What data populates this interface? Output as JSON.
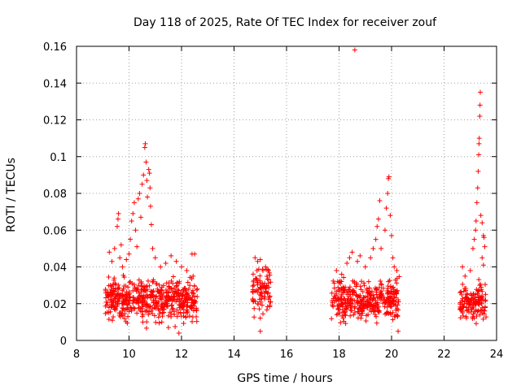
{
  "chart_data": {
    "type": "scatter",
    "title": "Day 118 of 2025, Rate Of TEC Index for receiver zouf",
    "xlabel": "GPS time / hours",
    "ylabel": "ROTI / TECUs",
    "xlim": [
      8,
      24
    ],
    "ylim": [
      0,
      0.16
    ],
    "grid": true,
    "marker": "+",
    "color": "#ff0000",
    "x_ticks": [
      8,
      10,
      12,
      14,
      16,
      18,
      20,
      22,
      24
    ],
    "x_tick_labels": [
      "8",
      "10",
      "12",
      "14",
      "16",
      "18",
      "20",
      "22",
      "24"
    ],
    "y_ticks": [
      0,
      0.02,
      0.04,
      0.06,
      0.08,
      0.1,
      0.12,
      0.14,
      0.16
    ],
    "y_tick_labels": [
      "0",
      "0.02",
      "0.04",
      "0.06",
      "0.08",
      "0.1",
      "0.12",
      "0.14",
      "0.16"
    ],
    "series": [
      {
        "name": "ROTI",
        "clusters": [
          {
            "x_range": [
              9.1,
              12.6
            ],
            "base_range": [
              0.006,
              0.034
            ],
            "n": 520
          },
          {
            "x_range": [
              14.7,
              15.4
            ],
            "base_range": [
              0.006,
              0.044
            ],
            "n": 90
          },
          {
            "x_range": [
              17.7,
              20.3
            ],
            "base_range": [
              0.006,
              0.034
            ],
            "n": 380
          },
          {
            "x_range": [
              22.6,
              23.6
            ],
            "base_range": [
              0.006,
              0.032
            ],
            "n": 140
          }
        ],
        "notable_points": [
          {
            "x": 9.25,
            "y": 0.048
          },
          {
            "x": 9.35,
            "y": 0.043
          },
          {
            "x": 9.45,
            "y": 0.05
          },
          {
            "x": 9.55,
            "y": 0.062
          },
          {
            "x": 9.58,
            "y": 0.066
          },
          {
            "x": 9.6,
            "y": 0.069
          },
          {
            "x": 9.65,
            "y": 0.045
          },
          {
            "x": 9.7,
            "y": 0.052
          },
          {
            "x": 9.75,
            "y": 0.04
          },
          {
            "x": 9.9,
            "y": 0.044
          },
          {
            "x": 10.0,
            "y": 0.047
          },
          {
            "x": 10.05,
            "y": 0.055
          },
          {
            "x": 10.1,
            "y": 0.065
          },
          {
            "x": 10.15,
            "y": 0.069
          },
          {
            "x": 10.2,
            "y": 0.075
          },
          {
            "x": 10.25,
            "y": 0.06
          },
          {
            "x": 10.3,
            "y": 0.051
          },
          {
            "x": 10.35,
            "y": 0.077
          },
          {
            "x": 10.4,
            "y": 0.08
          },
          {
            "x": 10.45,
            "y": 0.067
          },
          {
            "x": 10.5,
            "y": 0.085
          },
          {
            "x": 10.55,
            "y": 0.09
          },
          {
            "x": 10.6,
            "y": 0.105
          },
          {
            "x": 10.62,
            "y": 0.107
          },
          {
            "x": 10.65,
            "y": 0.097
          },
          {
            "x": 10.68,
            "y": 0.087
          },
          {
            "x": 10.7,
            "y": 0.078
          },
          {
            "x": 10.75,
            "y": 0.093
          },
          {
            "x": 10.78,
            "y": 0.091
          },
          {
            "x": 10.8,
            "y": 0.083
          },
          {
            "x": 10.82,
            "y": 0.073
          },
          {
            "x": 10.85,
            "y": 0.063
          },
          {
            "x": 10.9,
            "y": 0.05
          },
          {
            "x": 11.0,
            "y": 0.045
          },
          {
            "x": 11.2,
            "y": 0.04
          },
          {
            "x": 11.4,
            "y": 0.042
          },
          {
            "x": 11.6,
            "y": 0.046
          },
          {
            "x": 11.8,
            "y": 0.043
          },
          {
            "x": 12.0,
            "y": 0.04
          },
          {
            "x": 12.2,
            "y": 0.038
          },
          {
            "x": 12.4,
            "y": 0.047
          },
          {
            "x": 12.5,
            "y": 0.047
          },
          {
            "x": 11.9,
            "y": 0.004
          },
          {
            "x": 11.5,
            "y": 0.007
          },
          {
            "x": 14.8,
            "y": 0.045
          },
          {
            "x": 14.9,
            "y": 0.043
          },
          {
            "x": 15.0,
            "y": 0.044
          },
          {
            "x": 15.1,
            "y": 0.038
          },
          {
            "x": 15.2,
            "y": 0.04
          },
          {
            "x": 15.0,
            "y": 0.005
          },
          {
            "x": 17.9,
            "y": 0.038
          },
          {
            "x": 18.1,
            "y": 0.036
          },
          {
            "x": 18.3,
            "y": 0.042
          },
          {
            "x": 18.4,
            "y": 0.045
          },
          {
            "x": 18.5,
            "y": 0.048
          },
          {
            "x": 18.6,
            "y": 0.158
          },
          {
            "x": 18.7,
            "y": 0.043
          },
          {
            "x": 18.8,
            "y": 0.046
          },
          {
            "x": 19.0,
            "y": 0.04
          },
          {
            "x": 19.2,
            "y": 0.045
          },
          {
            "x": 19.3,
            "y": 0.05
          },
          {
            "x": 19.4,
            "y": 0.055
          },
          {
            "x": 19.45,
            "y": 0.062
          },
          {
            "x": 19.5,
            "y": 0.066
          },
          {
            "x": 19.55,
            "y": 0.076
          },
          {
            "x": 19.6,
            "y": 0.05
          },
          {
            "x": 19.75,
            "y": 0.06
          },
          {
            "x": 19.8,
            "y": 0.072
          },
          {
            "x": 19.85,
            "y": 0.08
          },
          {
            "x": 19.88,
            "y": 0.088
          },
          {
            "x": 19.9,
            "y": 0.089
          },
          {
            "x": 19.95,
            "y": 0.068
          },
          {
            "x": 20.0,
            "y": 0.057
          },
          {
            "x": 20.05,
            "y": 0.045
          },
          {
            "x": 20.1,
            "y": 0.04
          },
          {
            "x": 20.2,
            "y": 0.038
          },
          {
            "x": 20.25,
            "y": 0.005
          },
          {
            "x": 22.7,
            "y": 0.04
          },
          {
            "x": 22.8,
            "y": 0.035
          },
          {
            "x": 23.0,
            "y": 0.038
          },
          {
            "x": 23.1,
            "y": 0.05
          },
          {
            "x": 23.15,
            "y": 0.055
          },
          {
            "x": 23.2,
            "y": 0.06
          },
          {
            "x": 23.22,
            "y": 0.065
          },
          {
            "x": 23.25,
            "y": 0.075
          },
          {
            "x": 23.28,
            "y": 0.083
          },
          {
            "x": 23.3,
            "y": 0.092
          },
          {
            "x": 23.32,
            "y": 0.101
          },
          {
            "x": 23.33,
            "y": 0.107
          },
          {
            "x": 23.34,
            "y": 0.11
          },
          {
            "x": 23.36,
            "y": 0.122
          },
          {
            "x": 23.37,
            "y": 0.128
          },
          {
            "x": 23.38,
            "y": 0.135
          },
          {
            "x": 23.4,
            "y": 0.068
          },
          {
            "x": 23.45,
            "y": 0.064
          },
          {
            "x": 23.5,
            "y": 0.057
          },
          {
            "x": 23.52,
            "y": 0.056
          },
          {
            "x": 23.55,
            "y": 0.051
          },
          {
            "x": 23.45,
            "y": 0.045
          },
          {
            "x": 23.5,
            "y": 0.041
          }
        ]
      }
    ]
  }
}
